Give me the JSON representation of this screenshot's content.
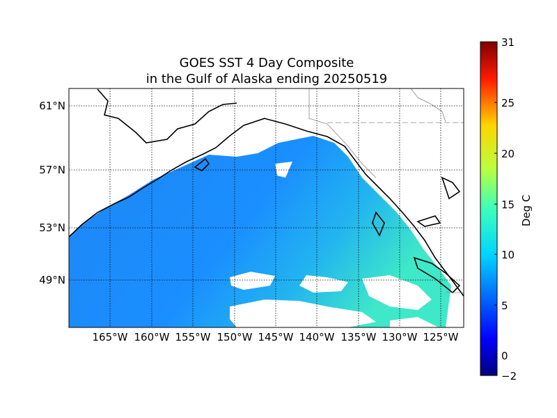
{
  "title": {
    "line1": "GOES SST 4 Day Composite",
    "line2": "in the Gulf of Alaska ending 20250519"
  },
  "map": {
    "lat_labels": [
      "61°N",
      "57°N",
      "53°N",
      "49°N"
    ],
    "lon_labels": [
      "165°W",
      "160°W",
      "155°W",
      "150°W",
      "145°W",
      "140°W",
      "135°W",
      "130°W",
      "125°W"
    ],
    "colors": {
      "ocean_main": "#1a8cff",
      "ocean_coastal": "#34d3e0",
      "ocean_warm": "#3ef0c0",
      "land": "#ffffff",
      "coastline": "#000000",
      "gridline": "#000000"
    }
  },
  "colorbar": {
    "label": "Deg C",
    "min": -2,
    "max": 31,
    "ticks": [
      "31",
      "25",
      "20",
      "15",
      "10",
      "5",
      "0",
      "−2"
    ],
    "colormap": "jet"
  }
}
